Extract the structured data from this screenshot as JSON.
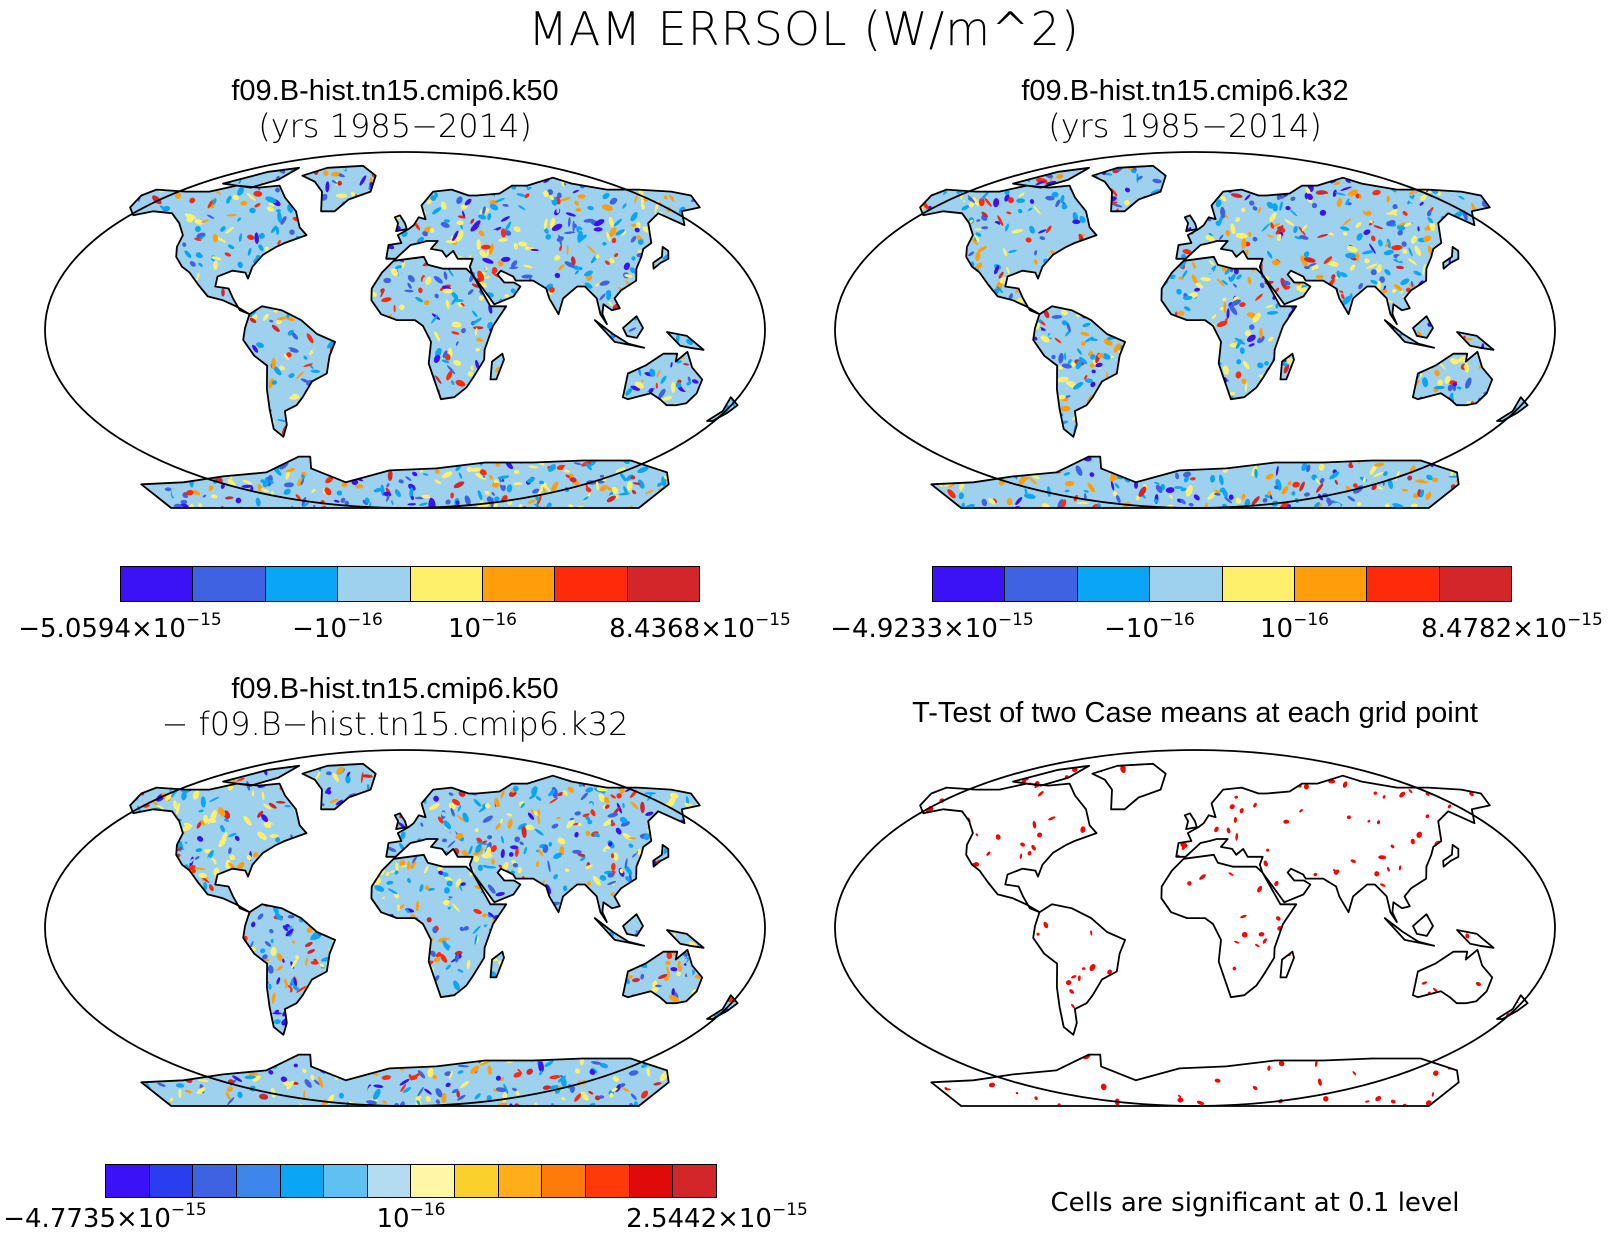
{
  "figure": {
    "title": "MAM ERRSOL (W/m^2)"
  },
  "panels": [
    {
      "title": "f09.B-hist.tn15.cmip6.k50",
      "subtitle": "(yrs 1985−2014)",
      "colorbar": {
        "colors": [
          "#3a12f5",
          "#3e62e1",
          "#0aa5f5",
          "#9dd1ee",
          "#fff06b",
          "#ff9e0a",
          "#ff2a0a",
          "#d2262a"
        ],
        "labels": [
          {
            "base": "−5.0594×10",
            "exp": "−15"
          },
          {
            "base": "−10",
            "exp": "−16"
          },
          {
            "base": "10",
            "exp": "−16"
          },
          {
            "base": "8.4368×10",
            "exp": "−15"
          }
        ]
      }
    },
    {
      "title": "f09.B-hist.tn15.cmip6.k32",
      "subtitle": "(yrs 1985−2014)",
      "colorbar": {
        "colors": [
          "#3a12f5",
          "#3e62e1",
          "#0aa5f5",
          "#9dd1ee",
          "#fff06b",
          "#ff9e0a",
          "#ff2a0a",
          "#d2262a"
        ],
        "labels": [
          {
            "base": "−4.9233×10",
            "exp": "−15"
          },
          {
            "base": "−10",
            "exp": "−16"
          },
          {
            "base": "10",
            "exp": "−16"
          },
          {
            "base": "8.4782×10",
            "exp": "−15"
          }
        ]
      }
    },
    {
      "title": "f09.B-hist.tn15.cmip6.k50",
      "subtitle": "− f09.B−hist.tn15.cmip6.k32",
      "colorbar": {
        "colors": [
          "#3a12f5",
          "#2a3ef0",
          "#3e62e1",
          "#3f86ec",
          "#0aa5f5",
          "#5ec1f2",
          "#b4dcf0",
          "#fff6a8",
          "#fad02a",
          "#ffae1a",
          "#ff7a0a",
          "#ff3a0a",
          "#e00a0a",
          "#d2262a"
        ],
        "labels": [
          {
            "base": "−4.7735×10",
            "exp": "−15"
          },
          {
            "base": "10",
            "exp": "−16"
          },
          {
            "base": "2.5442×10",
            "exp": "−15"
          }
        ]
      }
    },
    {
      "title": "T-Test of two Case means at each grid point",
      "note": "Cells are significant at 0.1 level"
    }
  ],
  "map_style": {
    "land_palette": [
      "#3a12f5",
      "#3e62e1",
      "#0aa5f5",
      "#9dd1ee",
      "#fff06b",
      "#ff9e0a",
      "#ff2a0a",
      "#d2262a"
    ],
    "ttest_color": "#ff0000"
  }
}
